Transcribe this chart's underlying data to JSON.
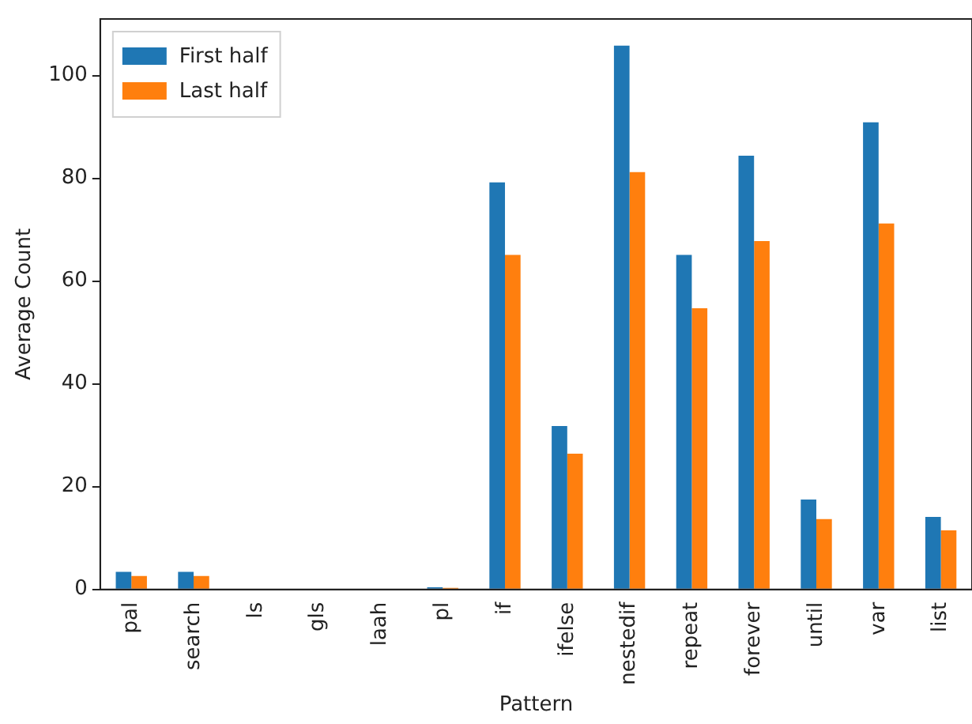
{
  "chart_data": {
    "type": "bar",
    "xlabel": "Pattern",
    "ylabel": "Average Count",
    "categories": [
      "pal",
      "search",
      "ls",
      "gls",
      "laah",
      "pl",
      "if",
      "ifelse",
      "nestedif",
      "repeat",
      "forever",
      "until",
      "var",
      "list"
    ],
    "series": [
      {
        "name": "First half",
        "color": "#1f77b4",
        "values": [
          3.4,
          3.4,
          0,
          0,
          0,
          0.4,
          79.2,
          31.8,
          105.8,
          65.1,
          84.4,
          17.5,
          90.9,
          14.1
        ]
      },
      {
        "name": "Last half",
        "color": "#ff7f0e",
        "values": [
          2.6,
          2.6,
          0,
          0,
          0,
          0.3,
          65.1,
          26.4,
          81.2,
          54.7,
          67.8,
          13.7,
          71.2,
          11.5
        ]
      }
    ],
    "ylim": [
      0,
      111
    ],
    "yticks": [
      0,
      20,
      40,
      60,
      80,
      100
    ],
    "grid": false,
    "legend": "top left"
  }
}
